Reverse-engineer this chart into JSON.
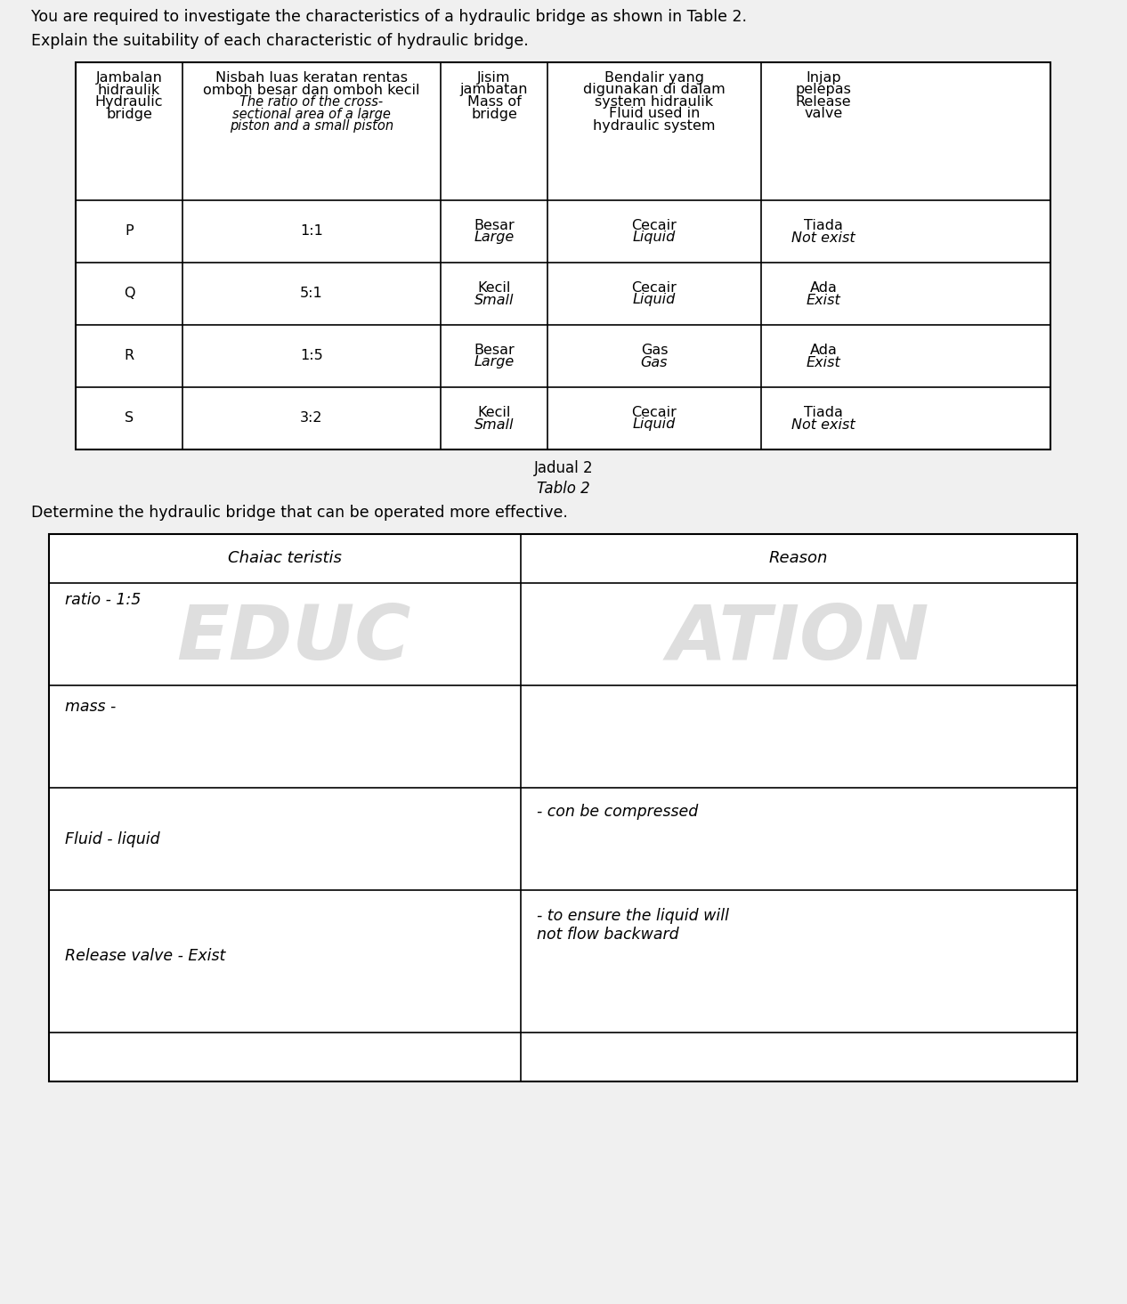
{
  "bg_color": "#e8e8e8",
  "paper_color": "#f0f0f0",
  "intro_text1": "You are required to investigate the characteristics of a hydraulic bridge as shown in Table 2.",
  "intro_text2": "Explain the suitability of each characteristic of hydraulic bridge.",
  "table1_headers": [
    [
      "Jambalan\nhidraulik\nHydraulic\nbridge",
      "Nisbah luas keratan rentas\nomboh besar dan omboh kecil\nThe ratio of the cross-\nsectional area of a large\npiston and a small piston",
      "Jisim\njambatan\nMass of\nbridge",
      "Bendalir yang\ndigunakan di dalam\nsystem hidraulik\nFluid used in\nhydraulic system",
      "Injap\npelepas\nRelease\nvalve"
    ]
  ],
  "table1_rows": [
    [
      "P",
      "1:1",
      "Besar\nLarge",
      "Cecair\nLiquid",
      "Tiada\nNot exist"
    ],
    [
      "Q",
      "5:1",
      "Kecil\nSmall",
      "Cecair\nLiquid",
      "Ada\nExist"
    ],
    [
      "R",
      "1:5",
      "Besar\nLarge",
      "Gas\nGas",
      "Ada\nExist"
    ],
    [
      "S",
      "3:2",
      "Kecil\nSmall",
      "Cecair\nLiquid",
      "Tiada\nNot exist"
    ]
  ],
  "jadual_label": "Jadual 2",
  "tablo_label": "Tablo 2",
  "determine_text": "Determine the hydraulic bridge that can be operated more effective.",
  "table2_headers": [
    "Chaiac teristis",
    "Reason"
  ],
  "watermark_text": "EDUCATION"
}
